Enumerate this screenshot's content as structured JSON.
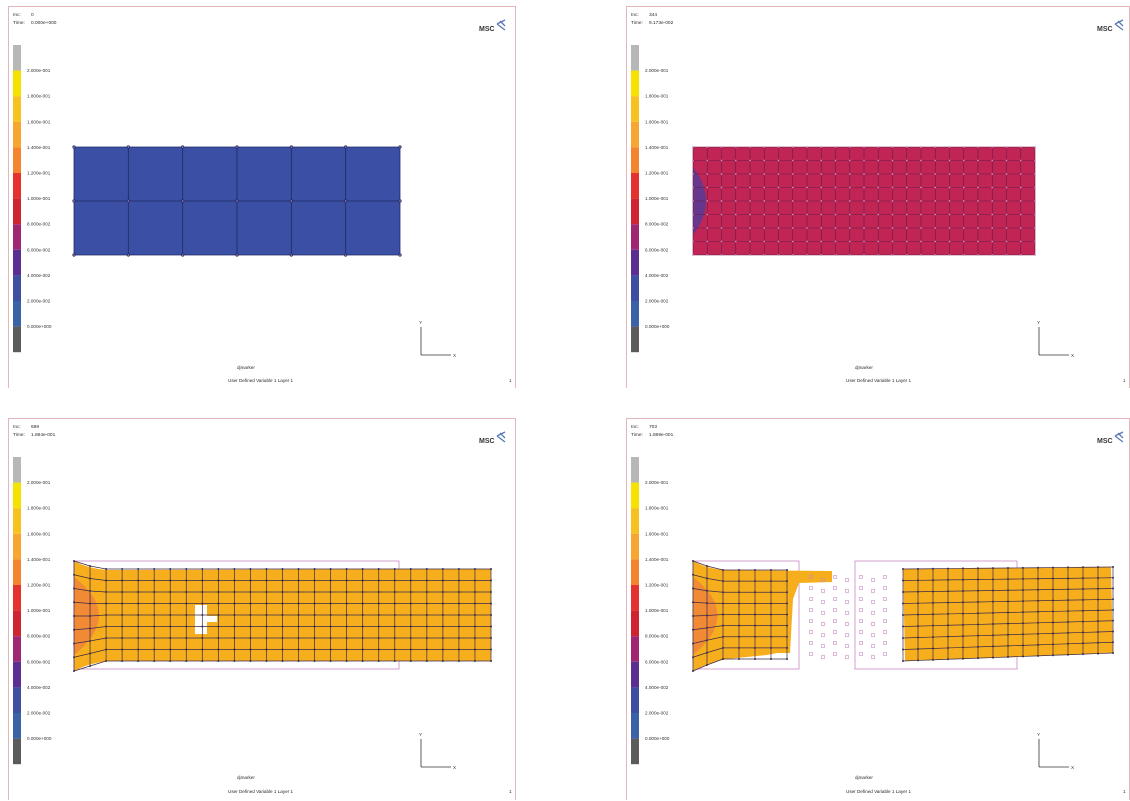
{
  "panels": [
    {
      "inc_label": "Inc:",
      "inc_value": "0",
      "time_label": "Time:",
      "time_value": "0.000e+000"
    },
    {
      "inc_label": "Inc:",
      "inc_value": "344",
      "time_label": "Time:",
      "time_value": "9.173e-002"
    },
    {
      "inc_label": "Inc:",
      "inc_value": "689",
      "time_label": "Time:",
      "time_value": "1.864e-001"
    },
    {
      "inc_label": "Inc:",
      "inc_value": "703",
      "time_label": "Time:",
      "time_value": "1.869e-001"
    }
  ],
  "legend": {
    "values": [
      "2.000e-001",
      "1.800e-001",
      "1.600e-001",
      "1.400e-001",
      "1.200e-001",
      "1.000e-001",
      "8.000e-002",
      "6.000e-002",
      "4.000e-002",
      "2.000e-002",
      "0.000e+000"
    ],
    "colors": [
      "#b7b7b7",
      "#f6e200",
      "#f7c11f",
      "#f7a731",
      "#f4842e",
      "#e6322e",
      "#cf2530",
      "#a02672",
      "#5a2f91",
      "#3e4ea0",
      "#3b62a7",
      "#5b5b5b"
    ]
  },
  "common": {
    "job_name": "djmarker",
    "variable_label": "User Defined Variable 1 Layer 1",
    "corner_mark": "1",
    "logo_text": "MSC",
    "axis_x": "X",
    "axis_y": "Y"
  },
  "mesh_colors": {
    "panel1": "#3b4fa5",
    "panel2": "#c02555",
    "panel2_spot": "#5c3a92",
    "panel3": "#f7ae1c",
    "panel3_hot": "#f18a35",
    "panel4": "#f7ae1c",
    "panel4_hot": "#f18a35",
    "grid_line": "#3a2a4a",
    "node": "#c98bc4"
  }
}
